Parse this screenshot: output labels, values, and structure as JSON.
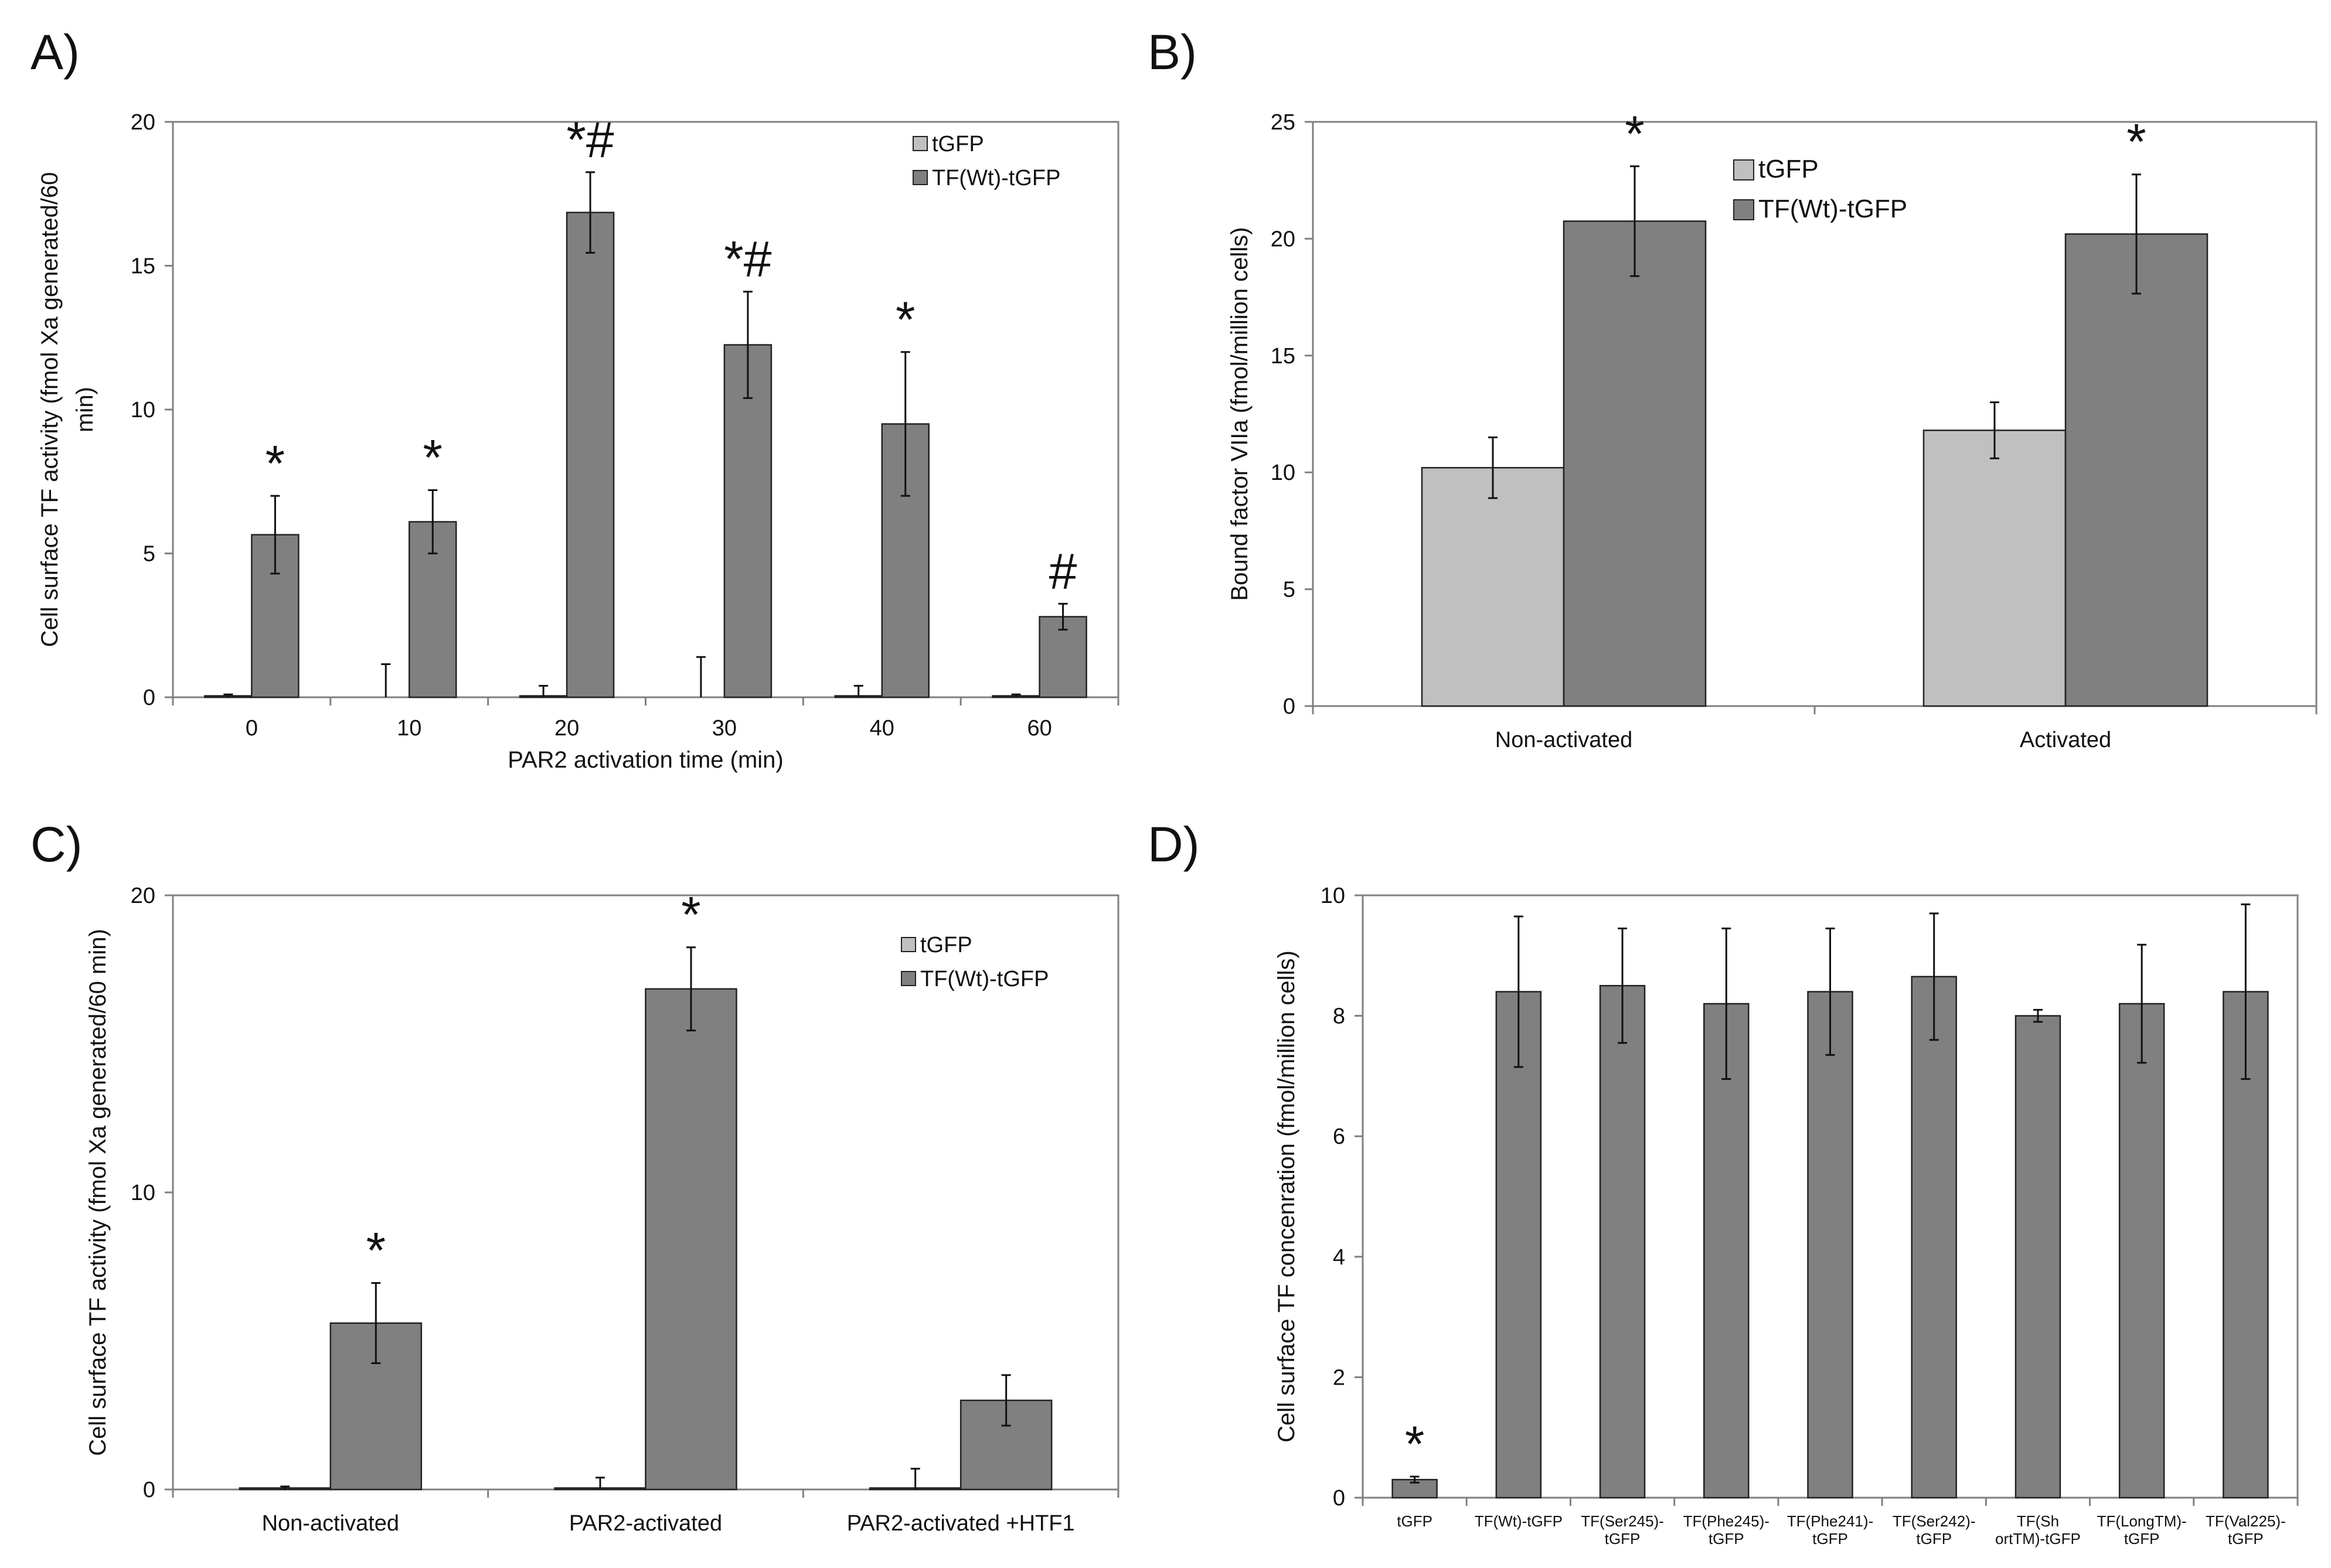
{
  "colors": {
    "light": "#c0c0c0",
    "dark": "#808080",
    "axis": "#808080",
    "text": "#111111"
  },
  "chart_data": [
    {
      "panel": "A)",
      "type": "bar",
      "categories": [
        "0",
        "10",
        "20",
        "30",
        "40",
        "60"
      ],
      "xlabel": "PAR2 activation time (min)",
      "ylabel": [
        "Cell surface TF activity (fmol Xa generated/60",
        "min)"
      ],
      "ylim": [
        0,
        20
      ],
      "yticks": [
        "0",
        "5",
        "10",
        "15",
        "20"
      ],
      "legend": [
        "tGFP",
        "TF(Wt)-tGFP"
      ],
      "series": [
        {
          "name": "tGFP",
          "values": [
            0.05,
            0,
            0.05,
            0,
            0.05,
            0.05
          ],
          "errors": [
            0.05,
            1.15,
            0.35,
            1.4,
            0.35,
            0.05
          ]
        },
        {
          "name": "TF(Wt)-tGFP",
          "values": [
            5.65,
            6.1,
            16.85,
            12.25,
            9.5,
            2.8
          ],
          "errors": [
            1.35,
            1.1,
            1.4,
            1.85,
            2.5,
            0.45
          ]
        }
      ],
      "annotations": [
        "*",
        "*",
        "*#",
        "*#",
        "*",
        "#"
      ]
    },
    {
      "panel": "B)",
      "type": "bar",
      "categories": [
        "Non-activated",
        "Activated"
      ],
      "xlabel": "",
      "ylabel": [
        "Bound factor VIIa (fmol/million cells)"
      ],
      "ylim": [
        0,
        25
      ],
      "yticks": [
        "0",
        "5",
        "10",
        "15",
        "20",
        "25"
      ],
      "legend": [
        "tGFP",
        "TF(Wt)-tGFP"
      ],
      "series": [
        {
          "name": "tGFP",
          "values": [
            10.2,
            11.8
          ],
          "errors": [
            1.3,
            1.2
          ]
        },
        {
          "name": "TF(Wt)-tGFP",
          "values": [
            20.75,
            20.2
          ],
          "errors": [
            2.35,
            2.55
          ]
        }
      ],
      "annotations": [
        "*",
        "*"
      ]
    },
    {
      "panel": "C)",
      "type": "bar",
      "categories": [
        "Non-activated",
        "PAR2-activated",
        "PAR2-activated +HTF1"
      ],
      "xlabel": "",
      "ylabel": [
        "Cell surface TF activity (fmol Xa generated/60 min)"
      ],
      "ylim": [
        0,
        20
      ],
      "yticks": [
        "0",
        "10",
        "20"
      ],
      "legend": [
        "tGFP",
        "TF(Wt)-tGFP"
      ],
      "series": [
        {
          "name": "tGFP",
          "values": [
            0.05,
            0.05,
            0.05
          ],
          "errors": [
            0.05,
            0.35,
            0.65
          ]
        },
        {
          "name": "TF(Wt)-tGFP",
          "values": [
            5.6,
            16.85,
            3.0
          ],
          "errors": [
            1.35,
            1.4,
            0.85
          ]
        }
      ],
      "annotations": [
        "*",
        "*",
        ""
      ]
    },
    {
      "panel": "D)",
      "type": "bar",
      "categories": [
        [
          "tGFP"
        ],
        [
          "TF(Wt)-tGFP"
        ],
        [
          "TF(Ser245)-",
          "tGFP"
        ],
        [
          "TF(Phe245)-",
          "tGFP"
        ],
        [
          "TF(Phe241)-",
          "tGFP"
        ],
        [
          "TF(Ser242)-",
          "tGFP"
        ],
        [
          "TF(Sh",
          "ortTM)-tGFP"
        ],
        [
          "TF(LongTM)-",
          "tGFP"
        ],
        [
          "TF(Val225)-",
          "tGFP"
        ]
      ],
      "xlabel": "",
      "ylabel": [
        "Cell surface TF concenration (fmol/million cells)"
      ],
      "ylim": [
        0,
        10
      ],
      "yticks": [
        "0",
        "2",
        "4",
        "6",
        "8",
        "10"
      ],
      "series": [
        {
          "name": "TF",
          "values": [
            0.3,
            8.4,
            8.5,
            8.2,
            8.4,
            8.65,
            8.0,
            8.2,
            8.4
          ],
          "errors": [
            0.05,
            1.25,
            0.95,
            1.25,
            1.05,
            1.05,
            0.1,
            0.98,
            1.45
          ]
        }
      ],
      "annotations": [
        "*",
        "",
        "",
        "",
        "",
        "",
        "",
        "",
        ""
      ]
    }
  ]
}
